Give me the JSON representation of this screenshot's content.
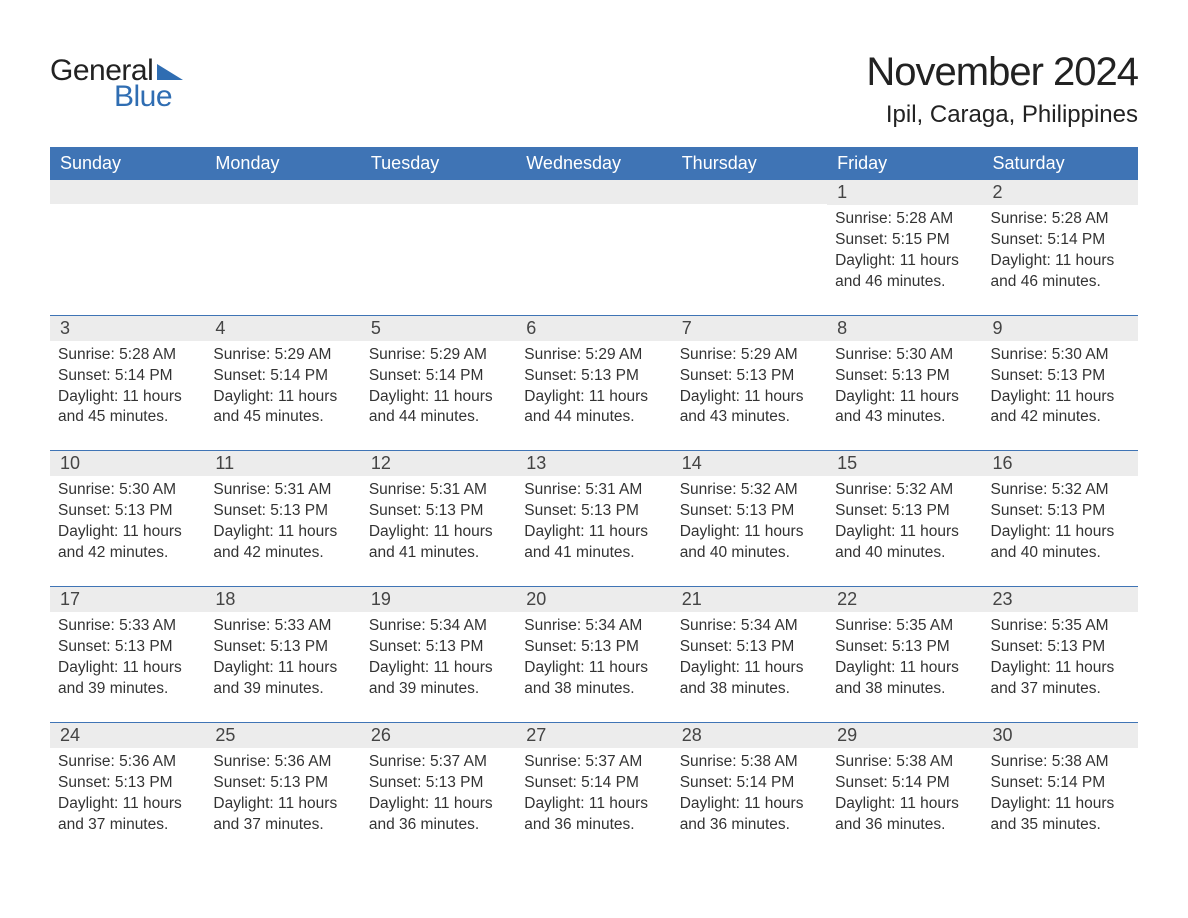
{
  "logo": {
    "text_general": "General",
    "text_blue": "Blue",
    "triangle_color": "#2f6db2"
  },
  "title": "November 2024",
  "location": "Ipil, Caraga, Philippines",
  "colors": {
    "header_bg": "#3f74b5",
    "header_text": "#ffffff",
    "row_divider": "#3f74b5",
    "daynum_bg": "#ececec",
    "body_text": "#333333",
    "page_bg": "#ffffff"
  },
  "typography": {
    "title_fontsize": 40,
    "location_fontsize": 24,
    "dow_fontsize": 18,
    "daynum_fontsize": 18,
    "body_fontsize": 15.5,
    "font_family": "Arial"
  },
  "days_of_week": [
    "Sunday",
    "Monday",
    "Tuesday",
    "Wednesday",
    "Thursday",
    "Friday",
    "Saturday"
  ],
  "labels": {
    "sunrise": "Sunrise:",
    "sunset": "Sunset:",
    "daylight": "Daylight:"
  },
  "weeks": [
    [
      null,
      null,
      null,
      null,
      null,
      {
        "n": "1",
        "sunrise": "5:28 AM",
        "sunset": "5:15 PM",
        "daylight": "11 hours and 46 minutes."
      },
      {
        "n": "2",
        "sunrise": "5:28 AM",
        "sunset": "5:14 PM",
        "daylight": "11 hours and 46 minutes."
      }
    ],
    [
      {
        "n": "3",
        "sunrise": "5:28 AM",
        "sunset": "5:14 PM",
        "daylight": "11 hours and 45 minutes."
      },
      {
        "n": "4",
        "sunrise": "5:29 AM",
        "sunset": "5:14 PM",
        "daylight": "11 hours and 45 minutes."
      },
      {
        "n": "5",
        "sunrise": "5:29 AM",
        "sunset": "5:14 PM",
        "daylight": "11 hours and 44 minutes."
      },
      {
        "n": "6",
        "sunrise": "5:29 AM",
        "sunset": "5:13 PM",
        "daylight": "11 hours and 44 minutes."
      },
      {
        "n": "7",
        "sunrise": "5:29 AM",
        "sunset": "5:13 PM",
        "daylight": "11 hours and 43 minutes."
      },
      {
        "n": "8",
        "sunrise": "5:30 AM",
        "sunset": "5:13 PM",
        "daylight": "11 hours and 43 minutes."
      },
      {
        "n": "9",
        "sunrise": "5:30 AM",
        "sunset": "5:13 PM",
        "daylight": "11 hours and 42 minutes."
      }
    ],
    [
      {
        "n": "10",
        "sunrise": "5:30 AM",
        "sunset": "5:13 PM",
        "daylight": "11 hours and 42 minutes."
      },
      {
        "n": "11",
        "sunrise": "5:31 AM",
        "sunset": "5:13 PM",
        "daylight": "11 hours and 42 minutes."
      },
      {
        "n": "12",
        "sunrise": "5:31 AM",
        "sunset": "5:13 PM",
        "daylight": "11 hours and 41 minutes."
      },
      {
        "n": "13",
        "sunrise": "5:31 AM",
        "sunset": "5:13 PM",
        "daylight": "11 hours and 41 minutes."
      },
      {
        "n": "14",
        "sunrise": "5:32 AM",
        "sunset": "5:13 PM",
        "daylight": "11 hours and 40 minutes."
      },
      {
        "n": "15",
        "sunrise": "5:32 AM",
        "sunset": "5:13 PM",
        "daylight": "11 hours and 40 minutes."
      },
      {
        "n": "16",
        "sunrise": "5:32 AM",
        "sunset": "5:13 PM",
        "daylight": "11 hours and 40 minutes."
      }
    ],
    [
      {
        "n": "17",
        "sunrise": "5:33 AM",
        "sunset": "5:13 PM",
        "daylight": "11 hours and 39 minutes."
      },
      {
        "n": "18",
        "sunrise": "5:33 AM",
        "sunset": "5:13 PM",
        "daylight": "11 hours and 39 minutes."
      },
      {
        "n": "19",
        "sunrise": "5:34 AM",
        "sunset": "5:13 PM",
        "daylight": "11 hours and 39 minutes."
      },
      {
        "n": "20",
        "sunrise": "5:34 AM",
        "sunset": "5:13 PM",
        "daylight": "11 hours and 38 minutes."
      },
      {
        "n": "21",
        "sunrise": "5:34 AM",
        "sunset": "5:13 PM",
        "daylight": "11 hours and 38 minutes."
      },
      {
        "n": "22",
        "sunrise": "5:35 AM",
        "sunset": "5:13 PM",
        "daylight": "11 hours and 38 minutes."
      },
      {
        "n": "23",
        "sunrise": "5:35 AM",
        "sunset": "5:13 PM",
        "daylight": "11 hours and 37 minutes."
      }
    ],
    [
      {
        "n": "24",
        "sunrise": "5:36 AM",
        "sunset": "5:13 PM",
        "daylight": "11 hours and 37 minutes."
      },
      {
        "n": "25",
        "sunrise": "5:36 AM",
        "sunset": "5:13 PM",
        "daylight": "11 hours and 37 minutes."
      },
      {
        "n": "26",
        "sunrise": "5:37 AM",
        "sunset": "5:13 PM",
        "daylight": "11 hours and 36 minutes."
      },
      {
        "n": "27",
        "sunrise": "5:37 AM",
        "sunset": "5:14 PM",
        "daylight": "11 hours and 36 minutes."
      },
      {
        "n": "28",
        "sunrise": "5:38 AM",
        "sunset": "5:14 PM",
        "daylight": "11 hours and 36 minutes."
      },
      {
        "n": "29",
        "sunrise": "5:38 AM",
        "sunset": "5:14 PM",
        "daylight": "11 hours and 36 minutes."
      },
      {
        "n": "30",
        "sunrise": "5:38 AM",
        "sunset": "5:14 PM",
        "daylight": "11 hours and 35 minutes."
      }
    ]
  ]
}
